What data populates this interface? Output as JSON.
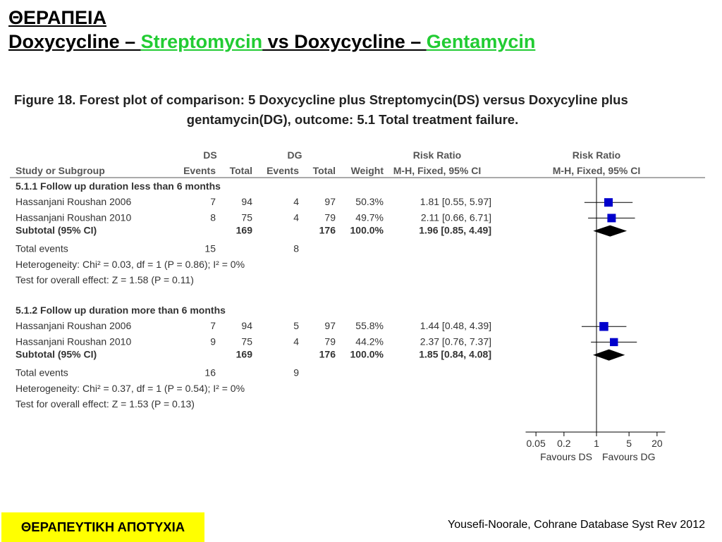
{
  "slide": {
    "title": "ΘΕΡΑΠΕΙΑ",
    "subtitle": {
      "part1": "Doxycycline – ",
      "part2": "Streptomycin",
      "part3": " vs Doxycycline – ",
      "part4": "Gentamycin"
    },
    "highlight_color": "#22cc33",
    "badge": "ΘΕΡΑΠΕΥΤΙΚΗ ΑΠΟΤΥΧΙΑ",
    "badge_color": "#ffff00",
    "citation": "Yousefi-Noorale, Cohrane Database Syst Rev 2012"
  },
  "figure": {
    "caption_line1": "Figure 18.   Forest plot of comparison: 5 Doxycycline plus Streptomycin(DS) versus Doxycyline plus",
    "caption_line2": "gentamycin(DG), outcome: 5.1 Total treatment failure."
  },
  "chart_data": {
    "type": "forest",
    "headers": {
      "group1": "DS",
      "group2": "DG",
      "rr_header": "Risk Ratio",
      "rr_method": "M-H, Fixed, 95% CI",
      "plot_header": "Risk Ratio",
      "plot_method": "M-H, Fixed, 95% CI",
      "study": "Study or Subgroup",
      "events": "Events",
      "total": "Total",
      "weight": "Weight"
    },
    "subgroups": [
      {
        "title": "5.1.1 Follow up duration less than 6 months",
        "studies": [
          {
            "name": "Hassanjani Roushan 2006",
            "ds_events": "7",
            "ds_total": "94",
            "dg_events": "4",
            "dg_total": "97",
            "weight": "50.3%",
            "ci_text": "1.81 [0.55, 5.97]",
            "rr": 1.81,
            "lo": 0.55,
            "hi": 5.97,
            "w": 50.3
          },
          {
            "name": "Hassanjani Roushan 2010",
            "ds_events": "8",
            "ds_total": "75",
            "dg_events": "4",
            "dg_total": "79",
            "weight": "49.7%",
            "ci_text": "2.11 [0.66, 6.71]",
            "rr": 2.11,
            "lo": 0.66,
            "hi": 6.71,
            "w": 49.7
          }
        ],
        "subtotal": {
          "label": "Subtotal (95% CI)",
          "ds_total": "169",
          "dg_total": "176",
          "weight": "100.0%",
          "ci_text": "1.96 [0.85, 4.49]",
          "rr": 1.96,
          "lo": 0.85,
          "hi": 4.49
        },
        "total_events": {
          "label": "Total events",
          "ds": "15",
          "dg": "8"
        },
        "heterogeneity": "Heterogeneity: Chi² = 0.03, df = 1 (P = 0.86); I² = 0%",
        "overall_effect": "Test for overall effect: Z = 1.58 (P = 0.11)"
      },
      {
        "title": "5.1.2 Follow up duration more than 6 months",
        "studies": [
          {
            "name": "Hassanjani Roushan 2006",
            "ds_events": "7",
            "ds_total": "94",
            "dg_events": "5",
            "dg_total": "97",
            "weight": "55.8%",
            "ci_text": "1.44 [0.48, 4.39]",
            "rr": 1.44,
            "lo": 0.48,
            "hi": 4.39,
            "w": 55.8
          },
          {
            "name": "Hassanjani Roushan 2010",
            "ds_events": "9",
            "ds_total": "75",
            "dg_events": "4",
            "dg_total": "79",
            "weight": "44.2%",
            "ci_text": "2.37 [0.76, 7.37]",
            "rr": 2.37,
            "lo": 0.76,
            "hi": 7.37,
            "w": 44.2
          }
        ],
        "subtotal": {
          "label": "Subtotal (95% CI)",
          "ds_total": "169",
          "dg_total": "176",
          "weight": "100.0%",
          "ci_text": "1.85 [0.84, 4.08]",
          "rr": 1.85,
          "lo": 0.84,
          "hi": 4.08
        },
        "total_events": {
          "label": "Total events",
          "ds": "16",
          "dg": "9"
        },
        "heterogeneity": "Heterogeneity: Chi² = 0.37, df = 1 (P = 0.54); I² = 0%",
        "overall_effect": "Test for overall effect: Z = 1.53 (P = 0.13)"
      }
    ],
    "x_scale": "log",
    "x_ticks": [
      0.05,
      0.2,
      1,
      5,
      20
    ],
    "x_tick_labels": [
      "0.05",
      "0.2",
      "1",
      "5",
      "20"
    ],
    "favours_left": "Favours DS",
    "favours_right": "Favours DG",
    "square_color": "#0000cc",
    "diamond_color": "#000000"
  }
}
